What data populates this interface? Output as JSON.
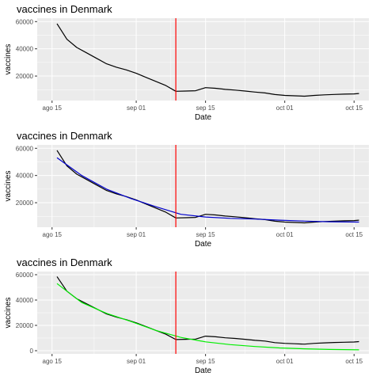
{
  "chart_data": [
    {
      "type": "line",
      "title": "vaccines in Denmark",
      "xlabel": "Date",
      "ylabel": "vaccines",
      "x_ticks": [
        "ago 15",
        "sep 01",
        "sep 15",
        "oct 01",
        "oct 15"
      ],
      "y_ticks": [
        "20000",
        "40000",
        "60000"
      ],
      "vline_date": "2021-09-09",
      "vline_color": "#ff0000",
      "series": [
        {
          "color": "#000000",
          "x": [
            "2021-08-16",
            "2021-08-18",
            "2021-08-20",
            "2021-08-22",
            "2021-08-24",
            "2021-08-26",
            "2021-08-28",
            "2021-08-30",
            "2021-09-01",
            "2021-09-03",
            "2021-09-05",
            "2021-09-07",
            "2021-09-09",
            "2021-09-11",
            "2021-09-13",
            "2021-09-15",
            "2021-09-17",
            "2021-09-19",
            "2021-09-21",
            "2021-09-23",
            "2021-09-25",
            "2021-09-27",
            "2021-09-29",
            "2021-10-01",
            "2021-10-03",
            "2021-10-05",
            "2021-10-07",
            "2021-10-09",
            "2021-10-11",
            "2021-10-13",
            "2021-10-15",
            "2021-10-16"
          ],
          "values": [
            58500,
            47000,
            41000,
            37000,
            33000,
            29000,
            26500,
            24500,
            22000,
            19000,
            16000,
            13000,
            8800,
            9000,
            9200,
            11500,
            11000,
            10200,
            9700,
            9000,
            8200,
            7600,
            6400,
            5800,
            5500,
            5200,
            5800,
            6200,
            6500,
            6700,
            6900,
            7200
          ]
        }
      ]
    },
    {
      "type": "line",
      "title": "vaccines in Denmark",
      "xlabel": "Date",
      "ylabel": "vaccines",
      "x_ticks": [
        "ago 15",
        "sep 01",
        "sep 15",
        "oct 01",
        "oct 15"
      ],
      "y_ticks": [
        "20000",
        "40000",
        "60000"
      ],
      "vline_date": "2021-09-09",
      "vline_color": "#ff0000",
      "series": [
        {
          "color": "#000000",
          "x": [
            "2021-08-16",
            "2021-08-18",
            "2021-08-20",
            "2021-08-22",
            "2021-08-24",
            "2021-08-26",
            "2021-08-28",
            "2021-08-30",
            "2021-09-01",
            "2021-09-03",
            "2021-09-05",
            "2021-09-07",
            "2021-09-09",
            "2021-09-11",
            "2021-09-13",
            "2021-09-15",
            "2021-09-17",
            "2021-09-19",
            "2021-09-21",
            "2021-09-23",
            "2021-09-25",
            "2021-09-27",
            "2021-09-29",
            "2021-10-01",
            "2021-10-03",
            "2021-10-05",
            "2021-10-07",
            "2021-10-09",
            "2021-10-11",
            "2021-10-13",
            "2021-10-15",
            "2021-10-16"
          ],
          "values": [
            58500,
            47000,
            41000,
            37000,
            33000,
            29000,
            26500,
            24500,
            22000,
            19000,
            16000,
            13000,
            8800,
            9000,
            9200,
            11500,
            11000,
            10200,
            9700,
            9000,
            8200,
            7600,
            6400,
            5800,
            5500,
            5200,
            5800,
            6200,
            6500,
            6700,
            6900,
            7200
          ]
        },
        {
          "color": "#0000cc",
          "x": [
            "2021-08-16",
            "2021-08-21",
            "2021-08-26",
            "2021-08-31",
            "2021-09-05",
            "2021-09-10",
            "2021-09-15",
            "2021-09-20",
            "2021-09-25",
            "2021-09-30",
            "2021-10-05",
            "2021-10-10",
            "2021-10-16"
          ],
          "values": [
            53000,
            40000,
            30000,
            23000,
            17000,
            11500,
            9500,
            8500,
            8000,
            7200,
            6500,
            6000,
            5800
          ]
        }
      ]
    },
    {
      "type": "line",
      "title": "vaccines in Denmark",
      "xlabel": "Date",
      "ylabel": "vaccines",
      "x_ticks": [
        "ago 15",
        "sep 01",
        "sep 15",
        "oct 01",
        "oct 15"
      ],
      "y_ticks": [
        "0",
        "20000",
        "40000",
        "60000"
      ],
      "vline_date": "2021-09-09",
      "vline_color": "#ff0000",
      "series": [
        {
          "color": "#000000",
          "x": [
            "2021-08-16",
            "2021-08-18",
            "2021-08-20",
            "2021-08-22",
            "2021-08-24",
            "2021-08-26",
            "2021-08-28",
            "2021-08-30",
            "2021-09-01",
            "2021-09-03",
            "2021-09-05",
            "2021-09-07",
            "2021-09-09",
            "2021-09-11",
            "2021-09-13",
            "2021-09-15",
            "2021-09-17",
            "2021-09-19",
            "2021-09-21",
            "2021-09-23",
            "2021-09-25",
            "2021-09-27",
            "2021-09-29",
            "2021-10-01",
            "2021-10-03",
            "2021-10-05",
            "2021-10-07",
            "2021-10-09",
            "2021-10-11",
            "2021-10-13",
            "2021-10-15",
            "2021-10-16"
          ],
          "values": [
            58500,
            47000,
            41000,
            37000,
            33000,
            29000,
            26500,
            24500,
            22000,
            19000,
            16000,
            13000,
            8800,
            9000,
            9200,
            11500,
            11000,
            10200,
            9700,
            9000,
            8200,
            7600,
            6400,
            5800,
            5500,
            5200,
            5800,
            6200,
            6500,
            6700,
            6900,
            7200
          ]
        },
        {
          "color": "#00ee00",
          "x": [
            "2021-08-16",
            "2021-08-21",
            "2021-08-26",
            "2021-08-31",
            "2021-09-05",
            "2021-09-10",
            "2021-09-15",
            "2021-09-20",
            "2021-09-25",
            "2021-09-30",
            "2021-10-05",
            "2021-10-10",
            "2021-10-16"
          ],
          "values": [
            53000,
            38000,
            29500,
            23000,
            16000,
            10500,
            7000,
            4800,
            3300,
            2200,
            1500,
            1000,
            700
          ]
        }
      ]
    }
  ]
}
